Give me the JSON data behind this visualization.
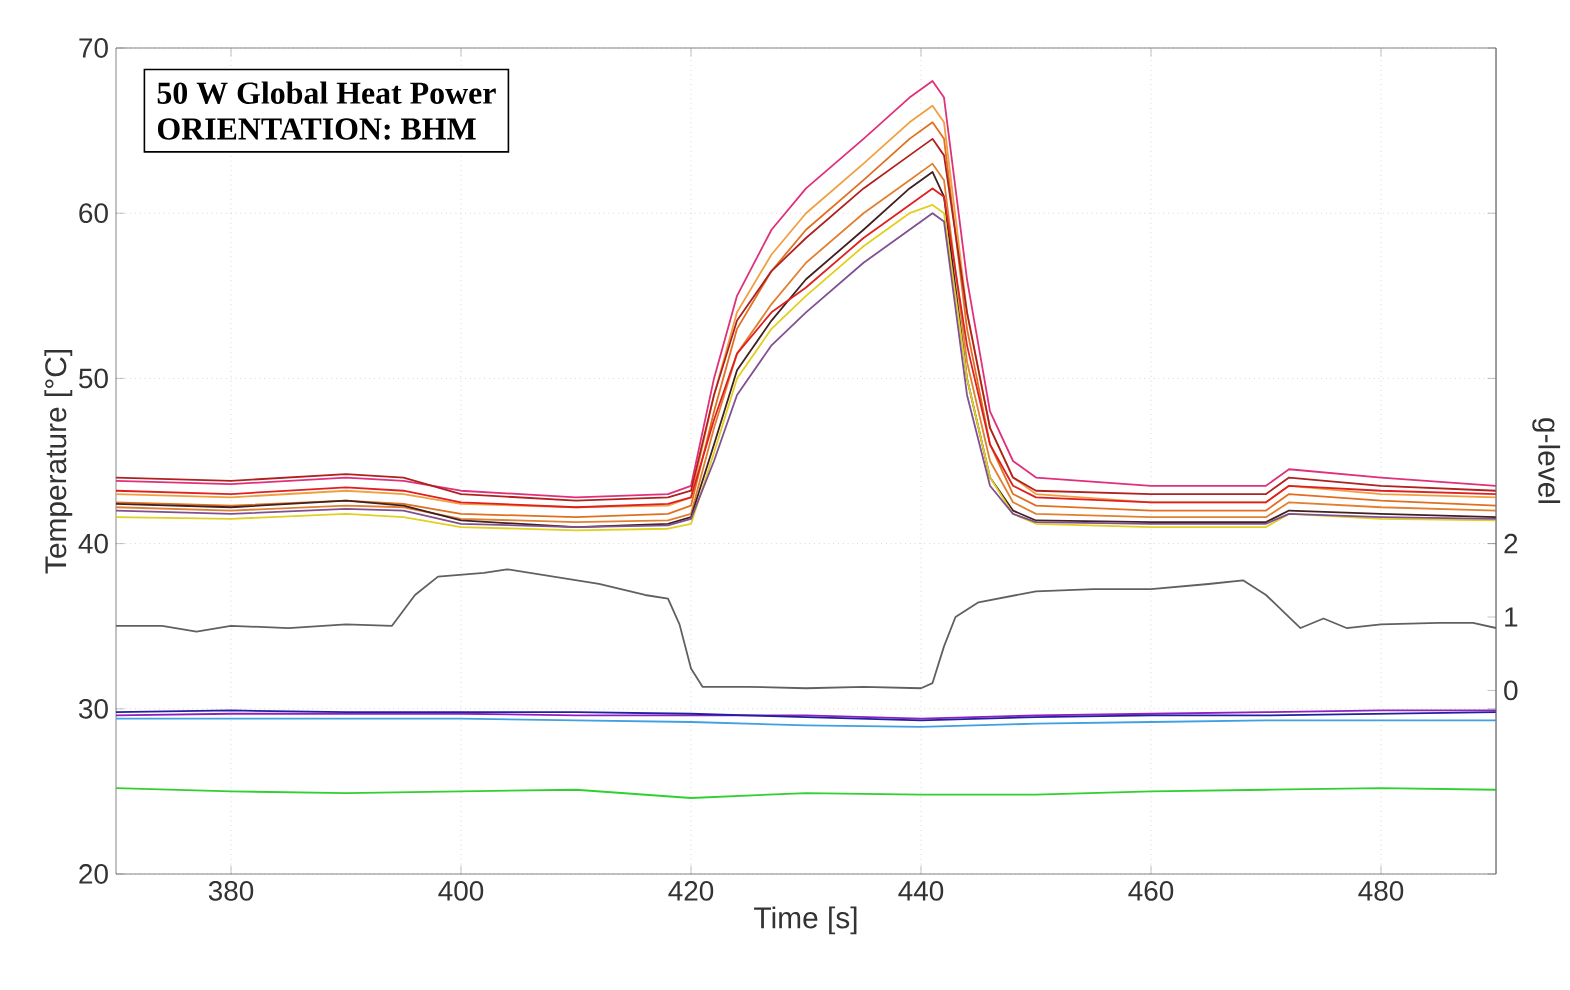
{
  "chart_data": {
    "type": "line",
    "xlabel": "Time [s]",
    "ylabel": "Temperature [°C]",
    "y2label": "g-level",
    "annotations": [
      "50 W Global Heat Power",
      "ORIENTATION: BHM"
    ],
    "xlim": [
      370,
      490
    ],
    "xticks": [
      380,
      400,
      420,
      440,
      460,
      480
    ],
    "ylim": [
      20,
      70
    ],
    "yticks": [
      20,
      30,
      40,
      50,
      60,
      70
    ],
    "y2lim": [
      -2.5,
      8.75
    ],
    "y2ticks": [
      0,
      1,
      2
    ],
    "grid": true,
    "x": [
      370,
      380,
      390,
      395,
      400,
      410,
      418,
      420,
      422,
      424,
      427,
      430,
      435,
      439,
      441,
      442,
      444,
      446,
      448,
      450,
      460,
      470,
      472,
      480,
      490
    ],
    "series": [
      {
        "color": "#e0307a",
        "values": [
          43.8,
          43.6,
          44.0,
          43.8,
          43.2,
          42.8,
          43.0,
          43.5,
          50,
          55,
          59,
          61.5,
          64.5,
          67,
          68,
          67,
          56,
          48,
          45,
          44,
          43.5,
          43.5,
          44.5,
          44,
          43.5
        ]
      },
      {
        "color": "#f0a040",
        "values": [
          43.0,
          42.8,
          43.2,
          43.0,
          42.4,
          42.2,
          42.3,
          42.8,
          49,
          54,
          57.5,
          60,
          63,
          65.5,
          66.5,
          65.5,
          54,
          47,
          44,
          43,
          42.5,
          42.5,
          43.5,
          43,
          42.8
        ]
      },
      {
        "color": "#e07020",
        "values": [
          42.5,
          42.3,
          42.6,
          42.4,
          41.8,
          41.6,
          41.8,
          42.3,
          48,
          53,
          56.5,
          59,
          62,
          64.5,
          65.5,
          64.5,
          53,
          46,
          43,
          42.3,
          42,
          42,
          43,
          42.6,
          42.3
        ]
      },
      {
        "color": "#b02020",
        "values": [
          44.0,
          43.8,
          44.2,
          44.0,
          43.0,
          42.6,
          42.8,
          43.2,
          49,
          53.5,
          56.5,
          58.5,
          61.5,
          63.5,
          64.5,
          63.5,
          54,
          47,
          44,
          43.2,
          43,
          43,
          44,
          43.5,
          43.2
        ]
      },
      {
        "color": "#e08030",
        "values": [
          42.2,
          42.0,
          42.3,
          42.2,
          41.5,
          41.3,
          41.4,
          41.8,
          47,
          51.5,
          54.5,
          57,
          60,
          62,
          63,
          62,
          51,
          45,
          42.5,
          41.8,
          41.6,
          41.6,
          42.5,
          42.2,
          42
        ]
      },
      {
        "color": "#402020",
        "values": [
          42.4,
          42.2,
          42.6,
          42.3,
          41.4,
          41.0,
          41.2,
          41.6,
          46,
          50.5,
          53.5,
          56,
          59,
          61.5,
          62.5,
          61,
          50,
          44,
          42,
          41.4,
          41.3,
          41.3,
          42,
          41.8,
          41.6
        ]
      },
      {
        "color": "#e02020",
        "values": [
          43.2,
          43.0,
          43.4,
          43.2,
          42.5,
          42.2,
          42.4,
          42.8,
          47.5,
          51.5,
          54,
          55.5,
          58.5,
          60.5,
          61.5,
          61,
          52,
          46,
          43.5,
          42.8,
          42.5,
          42.5,
          43.5,
          43.2,
          43
        ]
      },
      {
        "color": "#e0d020",
        "values": [
          41.6,
          41.5,
          41.8,
          41.6,
          41.0,
          40.8,
          40.9,
          41.2,
          45.5,
          50,
          53,
          55,
          58,
          60,
          60.5,
          60,
          50,
          44,
          41.8,
          41.2,
          41,
          41,
          41.8,
          41.5,
          41.4
        ]
      },
      {
        "color": "#805090",
        "values": [
          42.0,
          41.8,
          42.1,
          42.0,
          41.2,
          41.0,
          41.1,
          41.5,
          45,
          49,
          52,
          54,
          57,
          59,
          60,
          59.5,
          49,
          43.5,
          41.8,
          41.3,
          41.2,
          41.2,
          41.8,
          41.6,
          41.5
        ]
      },
      {
        "color": "#606060",
        "axis": "y2",
        "x": [
          370,
          374,
          377,
          380,
          385,
          390,
          394,
          396,
          398,
          402,
          404,
          408,
          412,
          416,
          418,
          419,
          420,
          421,
          425,
          430,
          435,
          440,
          441,
          442,
          443,
          445,
          450,
          455,
          460,
          465,
          468,
          470,
          472,
          473,
          475,
          477,
          480,
          485,
          488,
          490
        ],
        "values": [
          0.88,
          0.88,
          0.8,
          0.88,
          0.85,
          0.9,
          0.88,
          1.3,
          1.55,
          1.6,
          1.65,
          1.55,
          1.45,
          1.3,
          1.25,
          0.9,
          0.3,
          0.05,
          0.05,
          0.03,
          0.05,
          0.03,
          0.1,
          0.6,
          1.0,
          1.2,
          1.35,
          1.38,
          1.38,
          1.45,
          1.5,
          1.3,
          1.0,
          0.85,
          0.98,
          0.85,
          0.9,
          0.92,
          0.92,
          0.85
        ]
      },
      {
        "color": "#40a0e0",
        "x": [
          370,
          380,
          390,
          400,
          410,
          420,
          430,
          440,
          450,
          460,
          470,
          480,
          490
        ],
        "values": [
          29.4,
          29.4,
          29.4,
          29.4,
          29.3,
          29.2,
          29.0,
          28.9,
          29.1,
          29.2,
          29.3,
          29.3,
          29.3
        ]
      },
      {
        "color": "#9020c0",
        "x": [
          370,
          380,
          390,
          400,
          410,
          420,
          430,
          440,
          450,
          460,
          470,
          480,
          490
        ],
        "values": [
          29.6,
          29.7,
          29.7,
          29.7,
          29.6,
          29.6,
          29.6,
          29.4,
          29.6,
          29.7,
          29.8,
          29.9,
          29.9
        ]
      },
      {
        "color": "#2020a0",
        "x": [
          370,
          380,
          390,
          400,
          410,
          420,
          430,
          440,
          450,
          460,
          470,
          480,
          490
        ],
        "values": [
          29.8,
          29.9,
          29.8,
          29.8,
          29.8,
          29.7,
          29.5,
          29.3,
          29.5,
          29.6,
          29.6,
          29.7,
          29.8
        ]
      },
      {
        "color": "#30d030",
        "x": [
          370,
          380,
          390,
          400,
          410,
          420,
          430,
          440,
          450,
          460,
          470,
          480,
          490
        ],
        "values": [
          25.2,
          25.0,
          24.9,
          25.0,
          25.1,
          24.6,
          24.9,
          24.8,
          24.8,
          25.0,
          25.1,
          25.2,
          25.1
        ]
      }
    ]
  }
}
